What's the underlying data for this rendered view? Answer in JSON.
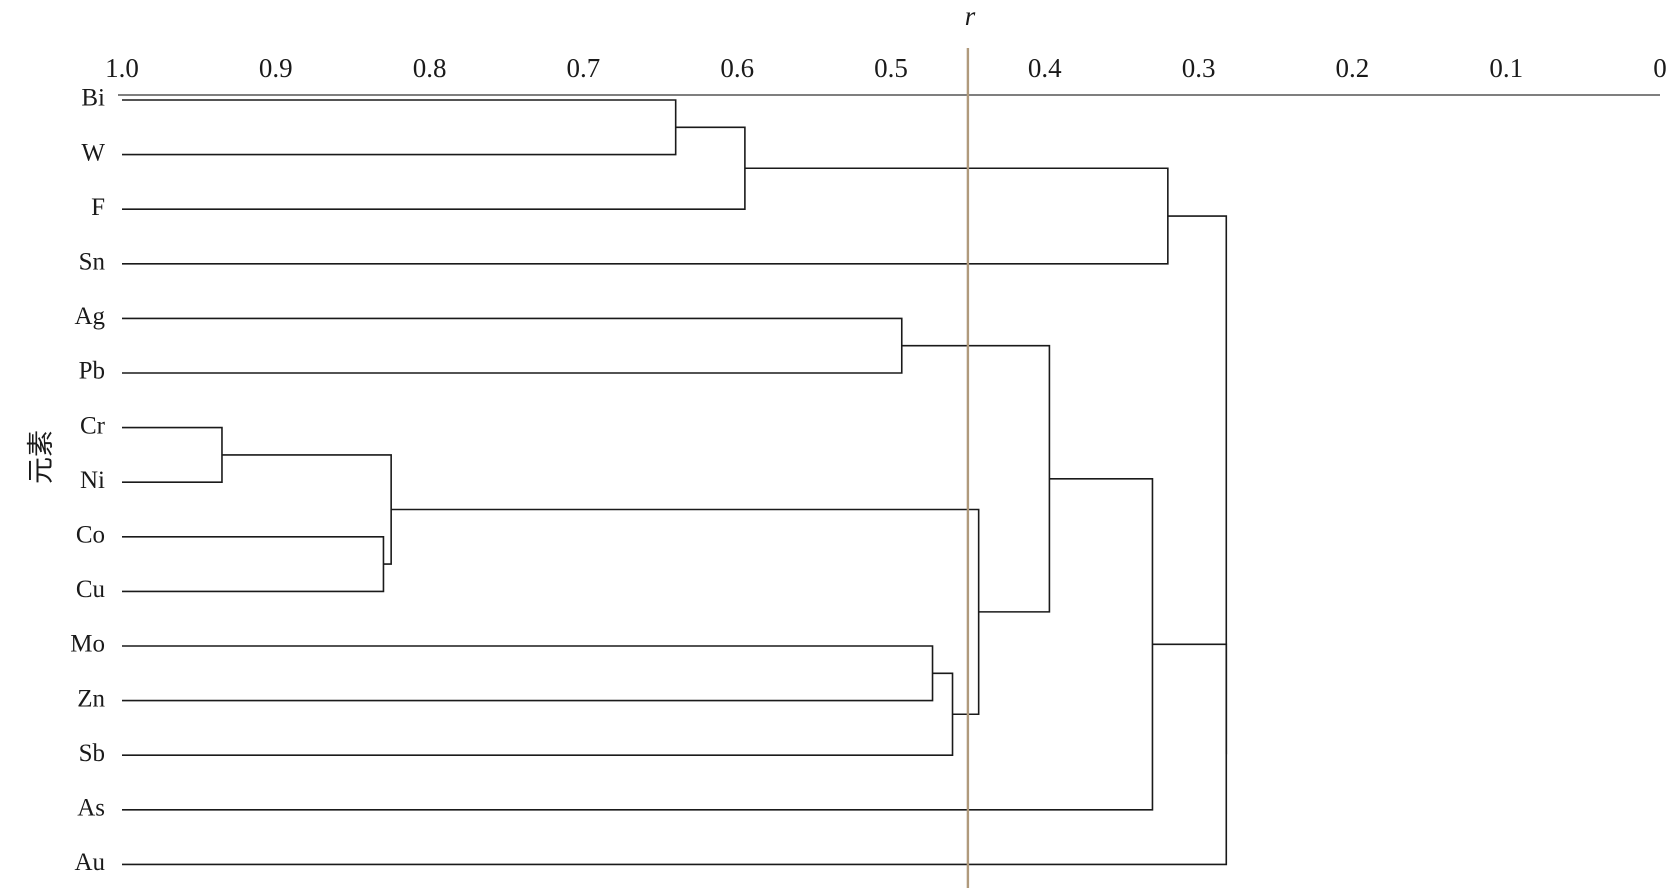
{
  "chart_data": {
    "type": "dendrogram",
    "orientation": "horizontal",
    "x_axis": {
      "label": "r",
      "label_style": "italic",
      "ticks": [
        "1.0",
        "0.9",
        "0.8",
        "0.7",
        "0.6",
        "0.5",
        "0.4",
        "0.3",
        "0.2",
        "0.1",
        "0"
      ],
      "tick_values": [
        1.0,
        0.9,
        0.8,
        0.7,
        0.6,
        0.5,
        0.4,
        0.3,
        0.2,
        0.1,
        0.0
      ],
      "range": [
        1.0,
        0.0
      ],
      "position": "top"
    },
    "y_axis": {
      "label": "元素"
    },
    "leaves": [
      "Bi",
      "W",
      "F",
      "Sn",
      "Ag",
      "Pb",
      "Cr",
      "Ni",
      "Co",
      "Cu",
      "Mo",
      "Zn",
      "Sb",
      "As",
      "Au"
    ],
    "merges": [
      {
        "id": "m1",
        "children": [
          "Bi",
          "W"
        ],
        "r": 0.64
      },
      {
        "id": "m2",
        "children": [
          "m1",
          "F"
        ],
        "r": 0.595
      },
      {
        "id": "m3",
        "children": [
          "m2",
          "Sn"
        ],
        "r": 0.32
      },
      {
        "id": "m4",
        "children": [
          "Ag",
          "Pb"
        ],
        "r": 0.493
      },
      {
        "id": "m5",
        "children": [
          "Cr",
          "Ni"
        ],
        "r": 0.935
      },
      {
        "id": "m6",
        "children": [
          "Co",
          "Cu"
        ],
        "r": 0.83
      },
      {
        "id": "m7",
        "children": [
          "m5",
          "m6"
        ],
        "r": 0.825
      },
      {
        "id": "m8",
        "children": [
          "Mo",
          "Zn"
        ],
        "r": 0.473
      },
      {
        "id": "m9",
        "children": [
          "m8",
          "Sb"
        ],
        "r": 0.46
      },
      {
        "id": "m10",
        "children": [
          "m7",
          "m9"
        ],
        "r": 0.443
      },
      {
        "id": "m11",
        "children": [
          "m4",
          "m10"
        ],
        "r": 0.397
      },
      {
        "id": "m12",
        "children": [
          "m11",
          "As"
        ],
        "r": 0.33
      },
      {
        "id": "m13",
        "children": [
          "m12",
          "Au"
        ],
        "r": 0.282
      },
      {
        "id": "m14",
        "children": [
          "m3",
          "m13"
        ],
        "r": 0.282
      }
    ],
    "threshold": {
      "r": 0.45,
      "color": "#b09a7c"
    },
    "colors": {
      "lines": "#1a1a1a",
      "axis": "#555555"
    }
  }
}
